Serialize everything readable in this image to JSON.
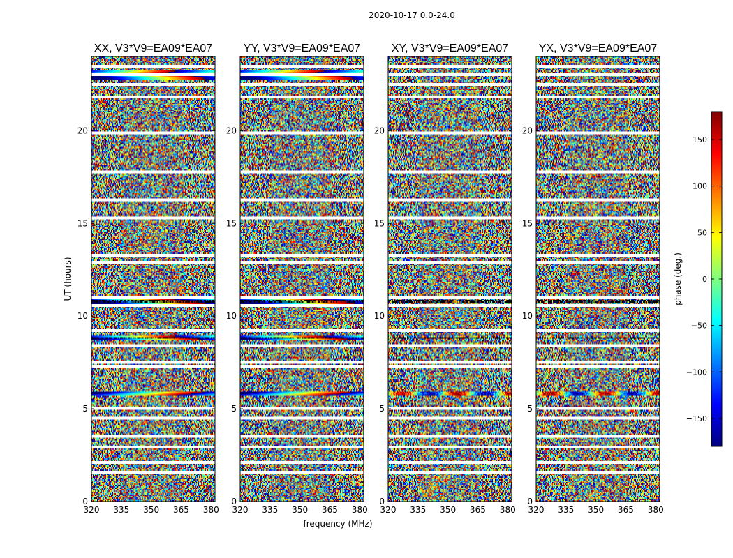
{
  "chart_data": {
    "type": "heatmap",
    "suptitle": "2020-10-17 0.0-24.0",
    "xlabel": "frequency (MHz)",
    "ylabel": "UT (hours)",
    "xlim": [
      320,
      382
    ],
    "ylim": [
      0,
      24
    ],
    "xticks": [
      320,
      335,
      350,
      365,
      380
    ],
    "yticks": [
      0,
      5,
      10,
      15,
      20
    ],
    "colorbar": {
      "label": "phase (deg.)",
      "range": [
        -180,
        180
      ],
      "ticks": [
        150,
        100,
        50,
        0,
        -50,
        -100,
        -150
      ],
      "tick_labels": [
        "150",
        "100",
        "50",
        "0",
        "−50",
        "−100",
        "−150"
      ]
    },
    "colormap": [
      "#00007f",
      "#0000ff",
      "#007fff",
      "#00ffff",
      "#7fff7f",
      "#ffff00",
      "#ff7f00",
      "#ff0000",
      "#7f0000"
    ],
    "flagged_rows_ut": [
      1.6,
      2.1,
      2.9,
      3.5,
      4.5,
      5.0,
      7.3,
      7.5,
      8.4,
      9.2,
      10.6,
      11.0,
      12.9,
      13.3,
      15.3,
      16.3,
      17.8,
      19.9,
      21.8,
      22.5,
      23.0,
      23.5
    ],
    "coherent_rows_ut": [
      5.8,
      8.8,
      10.8
    ],
    "panels": [
      {
        "title": "XX, V3*V9=EA09*EA07",
        "polarization": "XX",
        "baseline": "V3*V9=EA09*EA07"
      },
      {
        "title": "YY, V3*V9=EA09*EA07",
        "polarization": "YY",
        "baseline": "V3*V9=EA09*EA07"
      },
      {
        "title": "XY, V3*V9=EA09*EA07",
        "polarization": "XY",
        "baseline": "V3*V9=EA09*EA07"
      },
      {
        "title": "YX, V3*V9=EA09*EA07",
        "polarization": "YX",
        "baseline": "V3*V9=EA09*EA07"
      }
    ]
  }
}
